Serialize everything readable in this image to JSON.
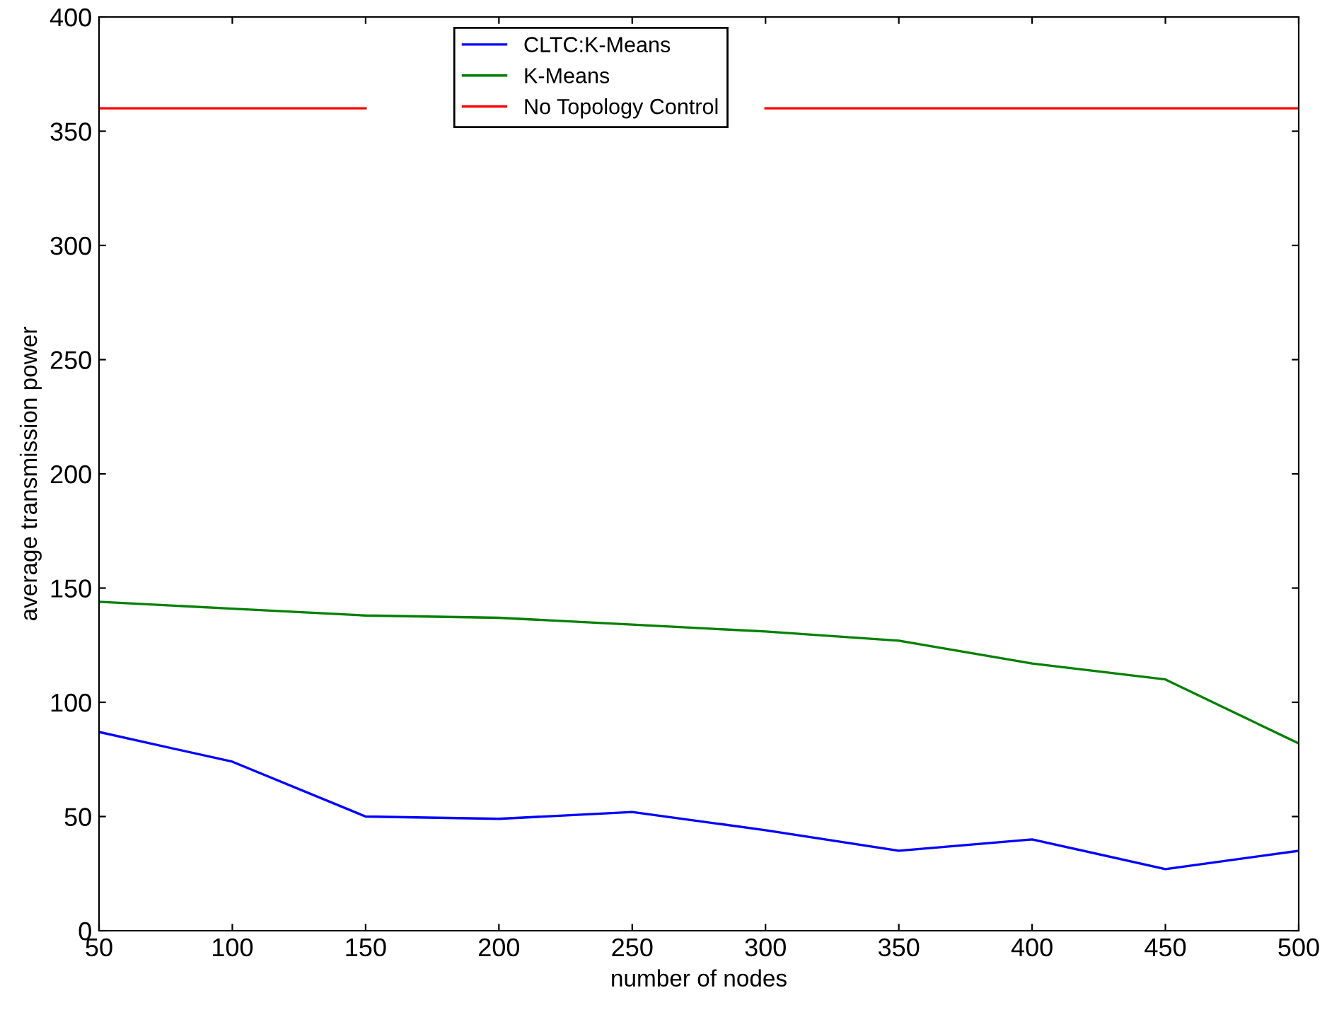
{
  "chart_data": {
    "type": "line",
    "xlabel": "number of nodes",
    "ylabel": "average transmission power",
    "x": [
      50,
      100,
      150,
      200,
      250,
      300,
      350,
      400,
      450,
      500
    ],
    "series": [
      {
        "name": "CLTC:K-Means",
        "color": "#0000ff",
        "values": [
          87,
          74,
          50,
          49,
          52,
          44,
          35,
          40,
          27,
          35
        ]
      },
      {
        "name": "K-Means",
        "color": "#008000",
        "values": [
          144,
          141,
          138,
          137,
          134,
          131,
          127,
          117,
          110,
          82
        ]
      },
      {
        "name": "No Topology Control",
        "color": "#ff0000",
        "values": [
          360,
          360,
          360,
          null,
          null,
          360,
          360,
          360,
          360,
          360
        ]
      }
    ],
    "xlim": [
      50,
      500
    ],
    "xticks": [
      50,
      100,
      150,
      200,
      250,
      300,
      350,
      400,
      450,
      500
    ],
    "ylim": [
      0,
      400
    ],
    "yticks": [
      0,
      50,
      100,
      150,
      200,
      250,
      300,
      350,
      400
    ],
    "grid": false,
    "legend": "top",
    "marker": "none",
    "line_style": "solid"
  }
}
